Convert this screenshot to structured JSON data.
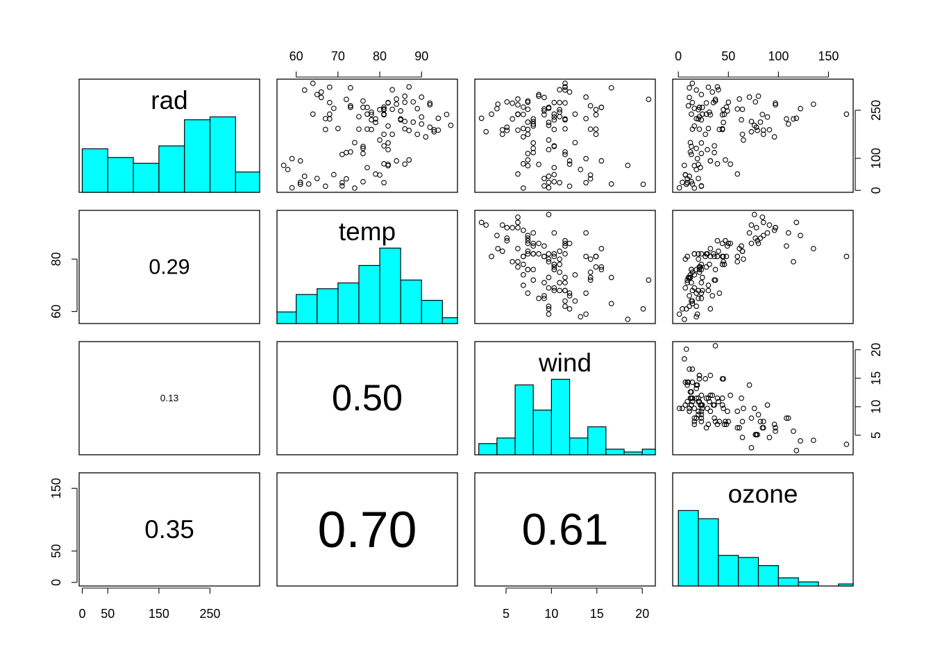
{
  "chart_data": {
    "type": "scatter-matrix",
    "color": "#00ffff",
    "series": [
      {
        "name": "rad",
        "values": [
          190,
          118,
          149,
          313,
          299,
          99,
          19,
          256,
          290,
          274,
          65,
          334,
          307,
          78,
          322,
          44,
          8,
          320,
          25,
          92,
          13,
          252,
          223,
          279,
          127,
          291,
          323,
          148,
          191,
          284,
          37,
          120,
          137,
          269,
          248,
          236,
          175,
          314,
          276,
          267,
          272,
          175,
          264,
          175,
          48,
          260,
          274,
          285,
          187,
          220,
          7,
          294,
          223,
          81,
          82,
          213,
          275,
          253,
          254,
          83,
          24,
          77,
          255,
          229,
          207,
          192,
          273,
          157,
          71,
          51,
          115,
          244,
          190,
          259,
          36,
          212,
          238,
          215,
          203,
          225,
          237,
          188,
          167,
          197,
          183,
          189,
          95,
          92,
          252,
          220,
          230,
          259,
          236,
          259,
          238,
          24,
          112,
          237,
          224,
          27,
          238,
          201,
          238,
          14,
          139,
          49,
          20,
          193,
          191,
          131,
          223
        ],
        "lim": [
          -6.08,
          347.08
        ],
        "xticks": [
          0,
          50,
          150,
          250
        ],
        "yticks": [
          0,
          100,
          250
        ],
        "bins": [
          0,
          50,
          100,
          150,
          200,
          250,
          300,
          350
        ],
        "counts": [
          15,
          12,
          10,
          16,
          25,
          26,
          7
        ]
      },
      {
        "name": "temp",
        "values": [
          67,
          72,
          74,
          62,
          65,
          59,
          61,
          69,
          66,
          68,
          58,
          64,
          66,
          57,
          68,
          62,
          59,
          73,
          61,
          61,
          67,
          81,
          79,
          76,
          82,
          90,
          87,
          82,
          77,
          72,
          65,
          73,
          76,
          84,
          85,
          81,
          83,
          83,
          88,
          92,
          92,
          89,
          73,
          81,
          80,
          81,
          82,
          84,
          87,
          85,
          74,
          86,
          85,
          82,
          86,
          88,
          86,
          83,
          81,
          81,
          81,
          82,
          89,
          90,
          90,
          86,
          82,
          80,
          77,
          79,
          76,
          78,
          78,
          77,
          72,
          79,
          81,
          86,
          97,
          94,
          96,
          94,
          91,
          92,
          93,
          93,
          87,
          84,
          80,
          78,
          75,
          73,
          81,
          76,
          77,
          71,
          71,
          78,
          67,
          76,
          68,
          82,
          64,
          71,
          81,
          69,
          63,
          70,
          75,
          76,
          68
        ],
        "lim": [
          55.4,
          98.6
        ],
        "xticks": [
          60,
          70,
          80,
          90
        ],
        "yticks": [
          60,
          80
        ],
        "bins": [
          55,
          60,
          65,
          70,
          75,
          80,
          85,
          90,
          95,
          100
        ],
        "counts": [
          4,
          10,
          12,
          14,
          20,
          26,
          15,
          8,
          2
        ]
      },
      {
        "name": "wind",
        "values": [
          7.4,
          8.0,
          12.6,
          11.5,
          8.6,
          13.8,
          20.1,
          9.7,
          9.2,
          10.9,
          13.2,
          11.5,
          12.0,
          18.4,
          11.5,
          9.7,
          9.7,
          16.6,
          9.7,
          12.0,
          12.0,
          14.9,
          5.7,
          7.4,
          9.7,
          13.8,
          11.5,
          8.0,
          14.9,
          20.7,
          9.2,
          11.5,
          10.3,
          4.1,
          9.2,
          9.2,
          4.6,
          10.9,
          5.1,
          6.3,
          5.7,
          7.4,
          14.3,
          14.9,
          14.3,
          6.9,
          10.3,
          6.3,
          5.1,
          11.5,
          6.9,
          8.6,
          8.0,
          8.6,
          12.0,
          7.4,
          7.4,
          7.4,
          9.2,
          6.9,
          13.8,
          7.4,
          4.0,
          10.3,
          8.0,
          11.5,
          11.5,
          9.7,
          10.3,
          6.3,
          7.4,
          10.9,
          10.3,
          15.5,
          14.3,
          9.7,
          3.4,
          8.0,
          9.7,
          2.3,
          6.3,
          6.3,
          6.9,
          5.1,
          2.8,
          4.6,
          7.4,
          15.5,
          10.9,
          10.3,
          10.9,
          9.7,
          14.9,
          15.5,
          6.3,
          10.9,
          11.5,
          6.9,
          13.8,
          10.3,
          10.3,
          8.0,
          12.6,
          9.2,
          10.3,
          10.3,
          16.6,
          6.9,
          14.3,
          8.0,
          11.5
        ],
        "lim": [
          1.564,
          21.436
        ],
        "xticks": [
          5,
          10,
          15,
          20
        ],
        "yticks": [
          5,
          10,
          15,
          20
        ],
        "bins": [
          2,
          4,
          6,
          8,
          10,
          12,
          14,
          16,
          18,
          20,
          22
        ],
        "counts": [
          4,
          6,
          25,
          16,
          27,
          6,
          10,
          2,
          1,
          2
        ]
      },
      {
        "name": "ozone",
        "values": [
          41,
          36,
          12,
          18,
          23,
          19,
          8,
          16,
          11,
          14,
          18,
          14,
          34,
          6,
          30,
          11,
          1,
          11,
          4,
          32,
          23,
          45,
          115,
          37,
          29,
          71,
          39,
          23,
          21,
          37,
          20,
          12,
          13,
          135,
          49,
          32,
          64,
          40,
          77,
          97,
          97,
          85,
          10,
          27,
          7,
          48,
          35,
          61,
          79,
          63,
          16,
          80,
          108,
          20,
          52,
          82,
          50,
          64,
          59,
          39,
          9,
          16,
          122,
          89,
          110,
          44,
          28,
          65,
          22,
          59,
          23,
          31,
          44,
          21,
          9,
          45,
          168,
          73,
          76,
          118,
          84,
          85,
          96,
          78,
          73,
          91,
          47,
          32,
          20,
          23,
          21,
          24,
          44,
          21,
          28,
          9,
          13,
          46,
          18,
          13,
          24,
          16,
          13,
          23,
          36,
          7,
          14,
          30,
          14,
          18,
          20
        ],
        "lim": [
          -5.68,
          174.68
        ],
        "xticks": [
          0,
          50,
          100,
          150
        ],
        "yticks": [
          0,
          50,
          150
        ],
        "bins": [
          0,
          20,
          40,
          60,
          80,
          100,
          120,
          140,
          160,
          180
        ],
        "counts": [
          37,
          33,
          15,
          14,
          10,
          4,
          2,
          0,
          1
        ]
      }
    ],
    "correlations": [
      0.29,
      0.13,
      0.5,
      0.35,
      0.7,
      0.61
    ],
    "correlation_labels": [
      "0.29",
      "0.13",
      "0.50",
      "0.35",
      "0.70",
      "0.61"
    ]
  }
}
